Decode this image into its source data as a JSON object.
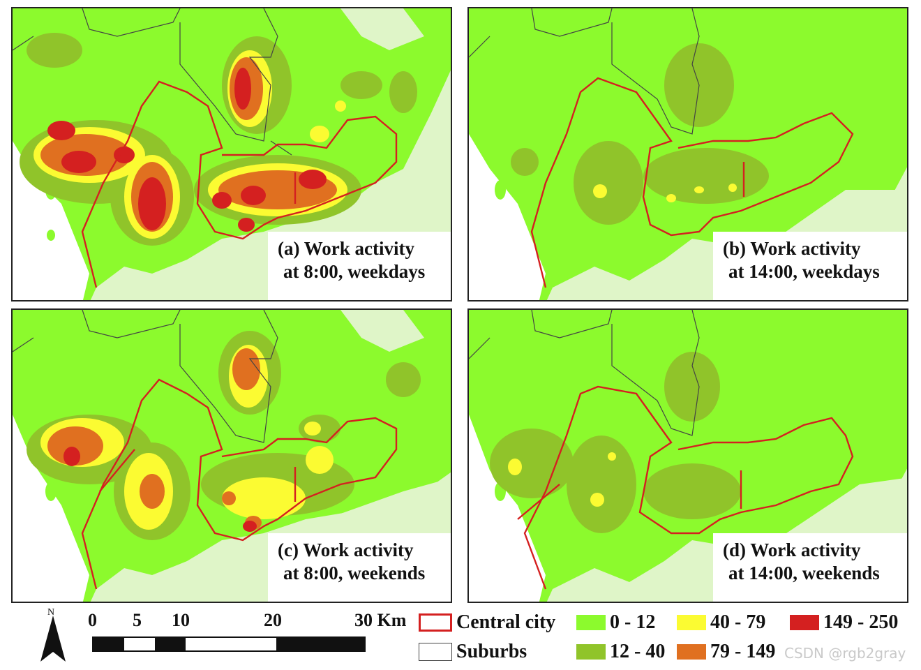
{
  "panels": [
    {
      "id": "a",
      "line1": "(a) Work activity",
      "line2": "at 8:00, weekdays"
    },
    {
      "id": "b",
      "line1": "(b) Work activity",
      "line2": "at 14:00, weekdays"
    },
    {
      "id": "c",
      "line1": "(c) Work activity",
      "line2": "at 8:00, weekends"
    },
    {
      "id": "d",
      "line1": "(d) Work activity",
      "line2": "at 14:00, weekends"
    }
  ],
  "scale": {
    "ticks": [
      "0",
      "5",
      "10",
      "20",
      "30 Km"
    ],
    "north_label": "N"
  },
  "legend": {
    "central_city": "Central city",
    "suburbs": "Suburbs",
    "classes": [
      {
        "label": "0 - 12",
        "color": "#8cfa2d"
      },
      {
        "label": "12 - 40",
        "color": "#90c42a"
      },
      {
        "label": "40 - 79",
        "color": "#fbfb32"
      },
      {
        "label": "79 - 149",
        "color": "#e07020"
      },
      {
        "label": "149 - 250",
        "color": "#d42020"
      }
    ]
  },
  "colors": {
    "land": "#8cfa2d",
    "sea": "#dff5c8",
    "central_border": "#d42020",
    "suburb_border": "#444444"
  },
  "watermark": "CSDN @rgb2gray"
}
